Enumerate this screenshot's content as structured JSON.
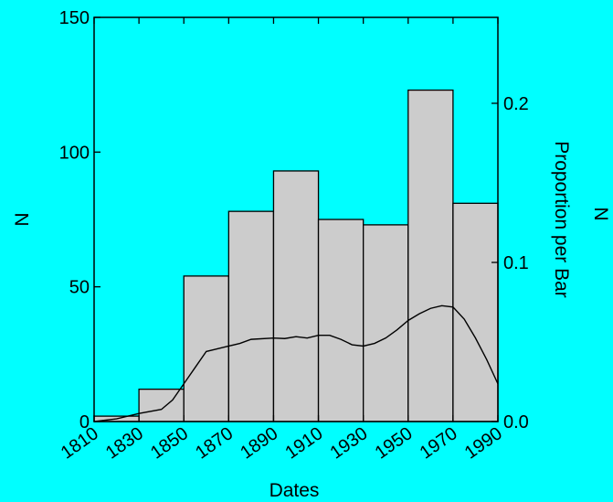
{
  "chart_data": {
    "type": "bar",
    "xlabel": "Dates",
    "ylabel": "N",
    "y2label": "Proportion per Bar",
    "right_outer_label": "N",
    "bin_edges": [
      1810,
      1830,
      1850,
      1870,
      1890,
      1910,
      1930,
      1950,
      1970,
      1990
    ],
    "x_tick_labels": [
      "1810",
      "1830",
      "1850",
      "1870",
      "1890",
      "1910",
      "1930",
      "1950",
      "1970",
      "1990"
    ],
    "values": [
      2,
      12,
      54,
      78,
      93,
      75,
      73,
      123,
      81
    ],
    "ylim": [
      0,
      150
    ],
    "y_ticks": [
      0,
      50,
      100,
      150
    ],
    "y_tick_labels": [
      "0",
      "50",
      "100",
      "150"
    ],
    "y2lim": [
      0,
      0.254
    ],
    "y2_ticks": [
      0.0,
      0.1,
      0.2
    ],
    "y2_tick_labels": [
      "0.0",
      "0.1",
      "0.2"
    ],
    "density_curve": {
      "x": [
        1810,
        1820,
        1830,
        1840,
        1845,
        1850,
        1855,
        1860,
        1865,
        1870,
        1875,
        1880,
        1890,
        1895,
        1900,
        1905,
        1910,
        1915,
        1920,
        1925,
        1930,
        1935,
        1940,
        1945,
        1950,
        1955,
        1960,
        1965,
        1970,
        1975,
        1980,
        1985,
        1990
      ],
      "y": [
        0,
        1,
        3,
        4.5,
        8,
        14,
        20,
        26,
        27,
        28,
        29,
        30.5,
        31,
        30.8,
        31.5,
        31,
        32,
        32,
        30.5,
        28.5,
        28,
        29,
        31,
        34,
        37.5,
        40,
        42,
        43,
        42.5,
        38,
        31,
        23,
        14
      ]
    },
    "grid": false,
    "legend": "none"
  },
  "colors": {
    "background": "#00FFFF",
    "bar_fill": "#CCCCCC",
    "bar_stroke": "#000000",
    "axis": "#000000",
    "curve": "#000000"
  }
}
